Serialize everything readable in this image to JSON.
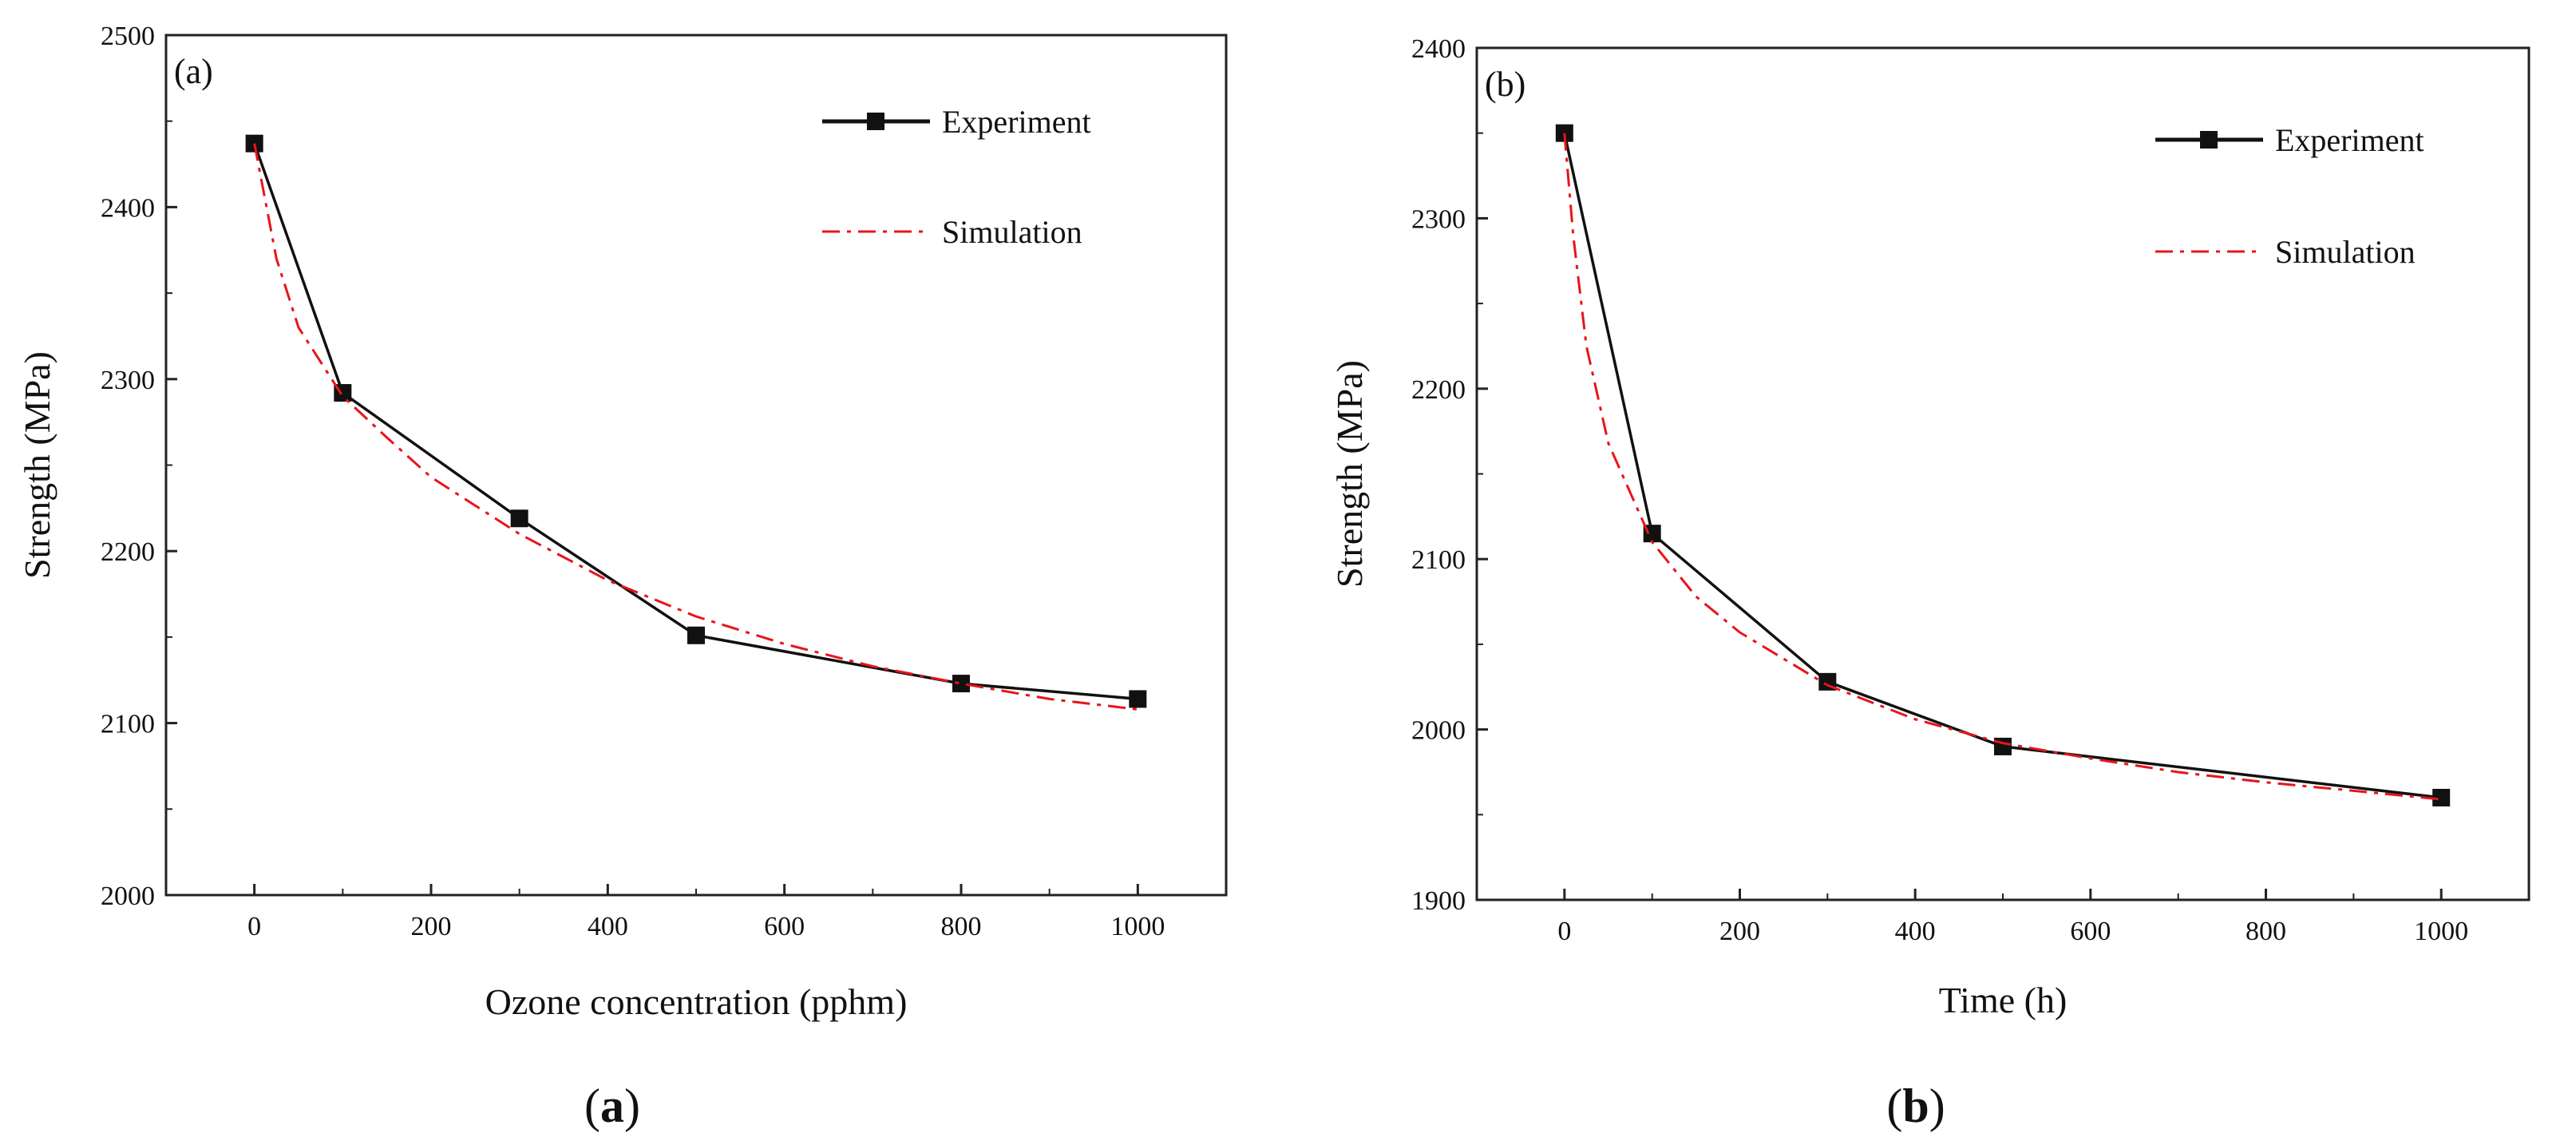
{
  "chart_data": [
    {
      "id": "a",
      "type": "line",
      "panel_tag": "(a)",
      "caption_open": "(",
      "caption_letter": "a",
      "caption_close": ")",
      "xlabel": "Ozone concentration (pphm)",
      "ylabel": "Strength (MPa)",
      "xlim": [
        -100,
        1100
      ],
      "ylim": [
        2000,
        2500
      ],
      "xticks": [
        0,
        200,
        400,
        600,
        800,
        1000
      ],
      "yticks": [
        2000,
        2100,
        2200,
        2300,
        2400,
        2500
      ],
      "legend_position": "top-right",
      "series": [
        {
          "name": "Experiment",
          "style": "solid-square",
          "color": "#111111",
          "x": [
            0,
            100,
            300,
            500,
            800,
            1000
          ],
          "y": [
            2437,
            2292,
            2219,
            2151,
            2123,
            2114
          ]
        },
        {
          "name": "Simulation",
          "style": "dash-dot",
          "color": "#e8141b",
          "x": [
            0,
            25,
            50,
            100,
            150,
            200,
            300,
            400,
            500,
            600,
            700,
            800,
            900,
            1000
          ],
          "y": [
            2437,
            2370,
            2330,
            2290,
            2266,
            2243,
            2210,
            2183,
            2162,
            2146,
            2133,
            2123,
            2114,
            2108
          ]
        }
      ]
    },
    {
      "id": "b",
      "type": "line",
      "panel_tag": "(b)",
      "caption_open": "(",
      "caption_letter": "b",
      "caption_close": ")",
      "xlabel": "Time (h)",
      "ylabel": "Strength (MPa)",
      "xlim": [
        -100,
        1100
      ],
      "ylim": [
        1900,
        2400
      ],
      "xticks": [
        0,
        200,
        400,
        600,
        800,
        1000
      ],
      "yticks": [
        1900,
        2000,
        2100,
        2200,
        2300,
        2400
      ],
      "legend_position": "top-right",
      "series": [
        {
          "name": "Experiment",
          "style": "solid-square",
          "color": "#111111",
          "x": [
            0,
            100,
            300,
            500,
            1000
          ],
          "y": [
            2350,
            2115,
            2028,
            1990,
            1960
          ]
        },
        {
          "name": "Simulation",
          "style": "dash-dot",
          "color": "#e8141b",
          "x": [
            0,
            10,
            25,
            50,
            100,
            150,
            200,
            300,
            400,
            500,
            600,
            700,
            800,
            900,
            1000
          ],
          "y": [
            2350,
            2290,
            2225,
            2168,
            2110,
            2078,
            2057,
            2026,
            2006,
            1992,
            1983,
            1975,
            1969,
            1964,
            1959
          ]
        }
      ]
    }
  ]
}
